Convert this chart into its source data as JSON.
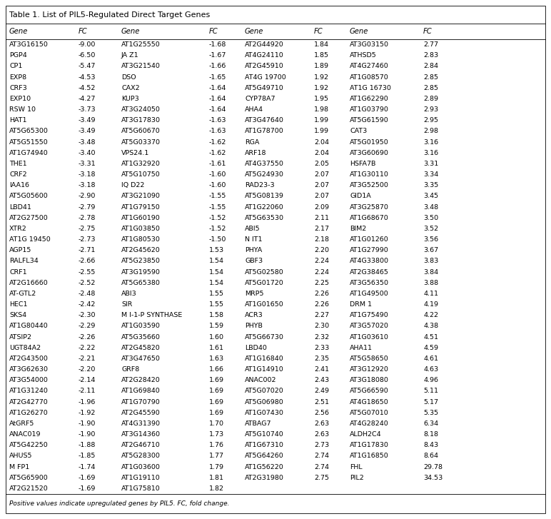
{
  "title": "Table 1. List of PIL5-Regulated Direct Target Genes",
  "footer": "Positive values indicate upregulated genes by PIL5. FC, fold change.",
  "columns": [
    "Gene",
    "FC",
    "Gene",
    "FC",
    "Gene",
    "FC",
    "Gene",
    "FC"
  ],
  "rows": [
    [
      "AT3G16150",
      "-9.00",
      "AT1G25550",
      "-1.68",
      "AT2G44920",
      "1.84",
      "AT3G03150",
      "2.77"
    ],
    [
      "PGP4",
      "-6.50",
      "JA Z1",
      "-1.67",
      "AT4G24110",
      "1.85",
      "ATHSD5",
      "2.83"
    ],
    [
      "CP1",
      "-5.47",
      "AT3G21540",
      "-1.66",
      "AT2G45910",
      "1.89",
      "AT4G27460",
      "2.84"
    ],
    [
      "EXP8",
      "-4.53",
      "DSO",
      "-1.65",
      "AT4G 19700",
      "1.92",
      "AT1G08570",
      "2.85"
    ],
    [
      "CRF3",
      "-4.52",
      "CAX2",
      "-1.64",
      "AT5G49710",
      "1.92",
      "AT1G 16730",
      "2.85"
    ],
    [
      "EXP10",
      "-4.27",
      "KUP3",
      "-1.64",
      "CYP78A7",
      "1.95",
      "AT1G62290",
      "2.89"
    ],
    [
      "RSW 10",
      "-3.73",
      "AT3G24050",
      "-1.64",
      "AHA4",
      "1.98",
      "AT1G03790",
      "2.93"
    ],
    [
      "HAT1",
      "-3.49",
      "AT3G17830",
      "-1.63",
      "AT3G47640",
      "1.99",
      "AT5G61590",
      "2.95"
    ],
    [
      "AT5G65300",
      "-3.49",
      "AT5G60670",
      "-1.63",
      "AT1G78700",
      "1.99",
      "CAT3",
      "2.98"
    ],
    [
      "AT5G51550",
      "-3.48",
      "AT5G03370",
      "-1.62",
      "RGA",
      "2.04",
      "AT5G01950",
      "3.16"
    ],
    [
      "AT1G74940",
      "-3.40",
      "VPS24.1",
      "-1.62",
      "ARF18",
      "2.04",
      "AT3G60690",
      "3.16"
    ],
    [
      "THE1",
      "-3.31",
      "AT1G32920",
      "-1.61",
      "AT4G37550",
      "2.05",
      "HSFA7B",
      "3.31"
    ],
    [
      "CRF2",
      "-3.18",
      "AT5G10750",
      "-1.60",
      "AT5G24930",
      "2.07",
      "AT1G30110",
      "3.34"
    ],
    [
      "IAA16",
      "-3.18",
      "IQ D22",
      "-1.60",
      "RAD23-3",
      "2.07",
      "AT3G52500",
      "3.35"
    ],
    [
      "AT5G05600",
      "-2.90",
      "AT3G21090",
      "-1.55",
      "AT5G08139",
      "2.07",
      "GID1A",
      "3.45"
    ],
    [
      "LBD41",
      "-2.79",
      "AT1G79150",
      "-1.55",
      "AT1G22060",
      "2.09",
      "AT3G25870",
      "3.48"
    ],
    [
      "AT2G27500",
      "-2.78",
      "AT1G60190",
      "-1.52",
      "AT5G63530",
      "2.11",
      "AT1G68670",
      "3.50"
    ],
    [
      "XTR2",
      "-2.75",
      "AT1G03850",
      "-1.52",
      "ABI5",
      "2.17",
      "BIM2",
      "3.52"
    ],
    [
      "AT1G 19450",
      "-2.73",
      "AT1G80530",
      "-1.50",
      "N IT1",
      "2.18",
      "AT1G01260",
      "3.56"
    ],
    [
      "AGP15",
      "-2.71",
      "AT2G45620",
      "1.53",
      "PHYA",
      "2.20",
      "AT1G27990",
      "3.67"
    ],
    [
      "RALFL34",
      "-2.66",
      "AT5G23850",
      "1.54",
      "GBF3",
      "2.24",
      "AT4G33800",
      "3.83"
    ],
    [
      "CRF1",
      "-2.55",
      "AT3G19590",
      "1.54",
      "AT5G02580",
      "2.24",
      "AT2G38465",
      "3.84"
    ],
    [
      "AT2G16660",
      "-2.52",
      "AT5G65380",
      "1.54",
      "AT5G01720",
      "2.25",
      "AT3G56350",
      "3.88"
    ],
    [
      "AT-GTL2",
      "-2.48",
      "ABI3",
      "1.55",
      "MRP5",
      "2.26",
      "AT1G49500",
      "4.11"
    ],
    [
      "HEC1",
      "-2.42",
      "SIR",
      "1.55",
      "AT1G01650",
      "2.26",
      "DRM 1",
      "4.19"
    ],
    [
      "SKS4",
      "-2.30",
      "M I-1-P SYNTHASE",
      "1.58",
      "ACR3",
      "2.27",
      "AT1G75490",
      "4.22"
    ],
    [
      "AT1G80440",
      "-2.29",
      "AT1G03590",
      "1.59",
      "PHYB",
      "2.30",
      "AT3G57020",
      "4.38"
    ],
    [
      "ATSIP2",
      "-2.26",
      "AT5G35660",
      "1.60",
      "AT5G66730",
      "2.32",
      "AT1G03610",
      "4.51"
    ],
    [
      "UGT84A2",
      "-2.22",
      "AT2G45820",
      "1.61",
      "LBD40",
      "2.33",
      "AHA11",
      "4.59"
    ],
    [
      "AT2G43500",
      "-2.21",
      "AT3G47650",
      "1.63",
      "AT1G16840",
      "2.35",
      "AT5G58650",
      "4.61"
    ],
    [
      "AT3G62630",
      "-2.20",
      "GRF8",
      "1.66",
      "AT1G14910",
      "2.41",
      "AT3G12920",
      "4.63"
    ],
    [
      "AT3G54000",
      "-2.14",
      "AT2G28420",
      "1.69",
      "ANAC002",
      "2.43",
      "AT3G18080",
      "4.96"
    ],
    [
      "AT1G31240",
      "-2.11",
      "AT1G69840",
      "1.69",
      "AT5G07020",
      "2.49",
      "AT5G66590",
      "5.11"
    ],
    [
      "AT2G42770",
      "-1.96",
      "AT1G70790",
      "1.69",
      "AT5G06980",
      "2.51",
      "AT4G18650",
      "5.17"
    ],
    [
      "AT1G26270",
      "-1.92",
      "AT2G45590",
      "1.69",
      "AT1G07430",
      "2.56",
      "AT5G07010",
      "5.35"
    ],
    [
      "AtGRF5",
      "-1.90",
      "AT4G31390",
      "1.70",
      "ATBAG7",
      "2.63",
      "AT4G28240",
      "6.34"
    ],
    [
      "ANAC019",
      "-1.90",
      "AT3G14360",
      "1.73",
      "AT5G10740",
      "2.63",
      "ALDH2C4",
      "8.18"
    ],
    [
      "AT5G42250",
      "-1.88",
      "AT2G46710",
      "1.76",
      "AT1G67310",
      "2.73",
      "AT1G17830",
      "8.43"
    ],
    [
      "AHUS5",
      "-1.85",
      "AT5G28300",
      "1.77",
      "AT5G64260",
      "2.74",
      "AT1G16850",
      "8.64"
    ],
    [
      "M FP1",
      "-1.74",
      "AT1G03600",
      "1.79",
      "AT1G56220",
      "2.74",
      "FHL",
      "29.78"
    ],
    [
      "AT5G65900",
      "-1.69",
      "AT1G19110",
      "1.81",
      "AT2G31980",
      "2.75",
      "PIL2",
      "34.53"
    ],
    [
      "AT2G21520",
      "-1.69",
      "AT1G75810",
      "1.82",
      "",
      "",
      "",
      ""
    ]
  ],
  "text_color": "#000000",
  "font_size": 6.8,
  "header_font_size": 7.2,
  "title_font_size": 8.0,
  "footer_font_size": 6.5
}
